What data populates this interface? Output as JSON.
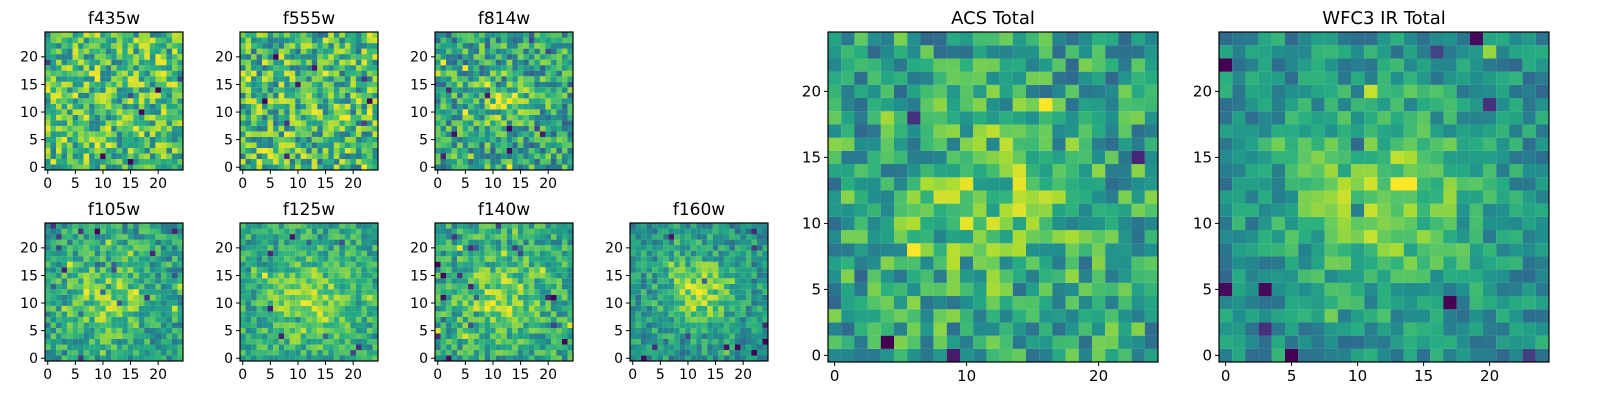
{
  "chart_data": [
    {
      "type": "heatmap",
      "title": "f435w",
      "xlabel": "",
      "ylabel": "",
      "grid": false,
      "xlim": [
        0,
        24
      ],
      "ylim": [
        0,
        24
      ],
      "xticks": [
        0,
        5,
        10,
        15,
        20
      ],
      "yticks": [
        0,
        5,
        10,
        15,
        20
      ],
      "size": [
        25,
        25
      ],
      "colormap": "viridis",
      "seed": 11,
      "pattern": "noise",
      "center": [
        12,
        12
      ],
      "sigma": 5,
      "strength": 0.0,
      "base": 0.7,
      "noise": 0.28
    },
    {
      "type": "heatmap",
      "title": "f555w",
      "xlabel": "",
      "ylabel": "",
      "grid": false,
      "xlim": [
        0,
        24
      ],
      "ylim": [
        0,
        24
      ],
      "xticks": [
        0,
        5,
        10,
        15,
        20
      ],
      "yticks": [
        0,
        5,
        10,
        15,
        20
      ],
      "size": [
        25,
        25
      ],
      "colormap": "viridis",
      "seed": 23,
      "pattern": "noise",
      "center": [
        12,
        12
      ],
      "sigma": 5,
      "strength": 0.0,
      "base": 0.68,
      "noise": 0.3
    },
    {
      "type": "heatmap",
      "title": "f814w",
      "xlabel": "",
      "ylabel": "",
      "grid": false,
      "xlim": [
        0,
        24
      ],
      "ylim": [
        0,
        24
      ],
      "xticks": [
        0,
        5,
        10,
        15,
        20
      ],
      "yticks": [
        0,
        5,
        10,
        15,
        20
      ],
      "size": [
        25,
        25
      ],
      "colormap": "viridis",
      "seed": 37,
      "pattern": "source",
      "center": [
        12,
        12
      ],
      "sigma": 3.5,
      "strength": 0.2,
      "base": 0.58,
      "noise": 0.28
    },
    {
      "type": "heatmap",
      "title": "f105w",
      "xlabel": "",
      "ylabel": "",
      "grid": false,
      "xlim": [
        0,
        24
      ],
      "ylim": [
        0,
        24
      ],
      "xticks": [
        0,
        5,
        10,
        15,
        20
      ],
      "yticks": [
        0,
        5,
        10,
        15,
        20
      ],
      "size": [
        25,
        25
      ],
      "colormap": "viridis",
      "seed": 41,
      "pattern": "source",
      "center": [
        11,
        11
      ],
      "sigma": 5,
      "strength": 0.24,
      "base": 0.57,
      "noise": 0.2
    },
    {
      "type": "heatmap",
      "title": "f125w",
      "xlabel": "",
      "ylabel": "",
      "grid": false,
      "xlim": [
        0,
        24
      ],
      "ylim": [
        0,
        24
      ],
      "xticks": [
        0,
        5,
        10,
        15,
        20
      ],
      "yticks": [
        0,
        5,
        10,
        15,
        20
      ],
      "size": [
        25,
        25
      ],
      "colormap": "viridis",
      "seed": 53,
      "pattern": "source",
      "center": [
        12,
        10
      ],
      "sigma": 5,
      "strength": 0.26,
      "base": 0.6,
      "noise": 0.18
    },
    {
      "type": "heatmap",
      "title": "f140w",
      "xlabel": "",
      "ylabel": "",
      "grid": false,
      "xlim": [
        0,
        24
      ],
      "ylim": [
        0,
        24
      ],
      "xticks": [
        0,
        5,
        10,
        15,
        20
      ],
      "yticks": [
        0,
        5,
        10,
        15,
        20
      ],
      "size": [
        25,
        25
      ],
      "colormap": "viridis",
      "seed": 67,
      "pattern": "source",
      "center": [
        11,
        11
      ],
      "sigma": 5,
      "strength": 0.24,
      "base": 0.6,
      "noise": 0.2
    },
    {
      "type": "heatmap",
      "title": "f160w",
      "xlabel": "",
      "ylabel": "",
      "grid": false,
      "xlim": [
        0,
        24
      ],
      "ylim": [
        0,
        24
      ],
      "xticks": [
        0,
        5,
        10,
        15,
        20
      ],
      "yticks": [
        0,
        5,
        10,
        15,
        20
      ],
      "size": [
        25,
        25
      ],
      "colormap": "viridis",
      "seed": 79,
      "pattern": "source",
      "center": [
        12,
        12
      ],
      "sigma": 4.5,
      "strength": 0.34,
      "base": 0.52,
      "noise": 0.18
    },
    {
      "type": "heatmap",
      "title": "ACS Total",
      "xlabel": "",
      "ylabel": "",
      "grid": false,
      "xlim": [
        0,
        24
      ],
      "ylim": [
        0,
        24
      ],
      "xticks": [
        0,
        10,
        20
      ],
      "yticks": [
        0,
        5,
        10,
        15,
        20
      ],
      "size": [
        25,
        25
      ],
      "colormap": "viridis",
      "seed": 97,
      "pattern": "source",
      "center": [
        12,
        12
      ],
      "sigma": 4.5,
      "strength": 0.18,
      "base": 0.58,
      "noise": 0.24
    },
    {
      "type": "heatmap",
      "title": "WFC3 IR Total",
      "xlabel": "",
      "ylabel": "",
      "grid": false,
      "xlim": [
        0,
        24
      ],
      "ylim": [
        0,
        24
      ],
      "xticks": [
        0,
        5,
        10,
        15,
        20
      ],
      "yticks": [
        0,
        5,
        10,
        15,
        20
      ],
      "size": [
        25,
        25
      ],
      "colormap": "viridis",
      "seed": 113,
      "pattern": "source",
      "center": [
        12,
        12
      ],
      "sigma": 4.8,
      "strength": 0.34,
      "base": 0.5,
      "noise": 0.16
    }
  ]
}
